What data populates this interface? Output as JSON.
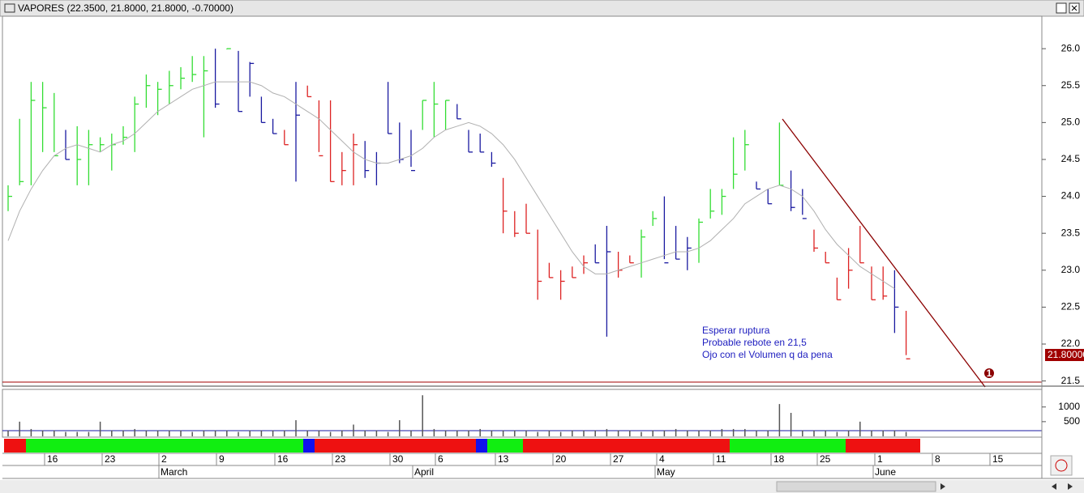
{
  "chart_data": {
    "type": "ohlc",
    "title": "VAPORES (22.3500, 21.8000, 21.8000, -0.70000)",
    "annotations": [
      "Esperar ruptura",
      "Probable rebote en 21,5",
      "Ojo con el Volumen q da pena"
    ],
    "last_price_label": "21.80000",
    "marker_label": "1",
    "x_labels": [
      "16",
      "23",
      "2",
      "9",
      "16",
      "23",
      "30",
      "6",
      "13",
      "20",
      "27",
      "4",
      "11",
      "18",
      "25",
      "1",
      "8",
      "15"
    ],
    "month_labels": [
      "March",
      "April",
      "May",
      "June"
    ],
    "high": [
      24.15,
      25.05,
      25.55,
      25.55,
      25.4,
      24.9,
      24.95,
      24.9,
      24.8,
      24.85,
      24.95,
      25.35,
      25.65,
      25.55,
      25.7,
      25.75,
      25.9,
      25.9,
      26.0,
      26.0,
      25.97,
      25.82,
      25.35,
      25.05,
      24.9,
      25.55,
      25.5,
      25.3,
      25.3,
      24.6,
      24.85,
      24.75,
      24.6,
      25.55,
      25.0,
      24.9,
      25.3,
      25.55,
      25.3,
      25.25,
      24.9,
      24.85,
      24.6,
      24.25,
      23.8,
      23.9,
      23.55,
      23.1,
      23.0,
      23.05,
      23.2,
      23.35,
      23.6,
      23.25,
      23.2,
      23.55,
      23.8,
      24.0,
      23.6,
      23.45,
      23.7,
      24.1,
      24.1,
      24.8,
      24.9,
      24.2,
      24.1,
      25.0,
      24.35,
      24.1,
      23.55,
      23.25,
      22.9,
      23.3,
      23.6,
      23.05,
      23.05,
      23.0,
      22.45
    ],
    "low": [
      23.8,
      24.15,
      24.15,
      24.6,
      24.6,
      24.5,
      24.15,
      24.15,
      24.6,
      24.35,
      24.7,
      24.6,
      25.2,
      25.1,
      25.25,
      25.45,
      25.55,
      24.8,
      25.2,
      25.99,
      25.15,
      25.35,
      25.0,
      24.85,
      24.7,
      24.2,
      25.35,
      24.6,
      24.2,
      24.15,
      24.15,
      24.25,
      24.15,
      24.85,
      24.45,
      24.4,
      24.9,
      24.8,
      24.9,
      25.05,
      24.6,
      24.6,
      24.4,
      23.5,
      23.45,
      23.5,
      22.6,
      22.9,
      22.6,
      22.9,
      22.95,
      23.1,
      22.1,
      22.9,
      23.1,
      22.9,
      23.6,
      23.15,
      23.15,
      23.0,
      23.1,
      23.7,
      23.75,
      24.1,
      24.35,
      24.1,
      23.9,
      24.15,
      23.8,
      23.75,
      23.25,
      23.1,
      22.6,
      22.75,
      23.1,
      22.6,
      22.6,
      22.15,
      21.85
    ],
    "close": [
      24.0,
      24.2,
      25.3,
      25.2,
      24.55,
      24.5,
      24.5,
      24.7,
      24.7,
      24.7,
      24.8,
      25.25,
      25.5,
      25.45,
      25.5,
      25.6,
      25.65,
      25.7,
      25.25,
      26.0,
      25.15,
      25.8,
      25.0,
      24.85,
      24.7,
      25.1,
      25.35,
      24.55,
      24.2,
      24.35,
      24.7,
      24.35,
      24.45,
      24.85,
      24.5,
      24.35,
      25.3,
      25.25,
      25.3,
      25.05,
      24.6,
      24.6,
      24.45,
      23.8,
      23.5,
      23.5,
      22.85,
      22.9,
      22.85,
      22.9,
      23.1,
      23.1,
      23.25,
      23.0,
      23.1,
      23.45,
      23.7,
      23.1,
      23.15,
      23.3,
      23.65,
      23.8,
      24.0,
      24.3,
      24.7,
      24.1,
      23.9,
      24.15,
      23.85,
      23.7,
      23.3,
      23.1,
      22.6,
      23.0,
      23.1,
      22.6,
      22.65,
      22.5,
      21.8
    ],
    "colors": [
      "#33dd33",
      "#33dd33",
      "#33dd33",
      "#33dd33",
      "#33dd33",
      "#1a1aa0",
      "#33dd33",
      "#33dd33",
      "#33dd33",
      "#33dd33",
      "#33dd33",
      "#33dd33",
      "#33dd33",
      "#33dd33",
      "#33dd33",
      "#33dd33",
      "#33dd33",
      "#33dd33",
      "#1a1aa0",
      "#33dd33",
      "#1a1aa0",
      "#1a1aa0",
      "#1a1aa0",
      "#1a1aa0",
      "#dd2222",
      "#1a1aa0",
      "#dd2222",
      "#dd2222",
      "#dd2222",
      "#dd2222",
      "#dd2222",
      "#1a1aa0",
      "#1a1aa0",
      "#1a1aa0",
      "#1a1aa0",
      "#1a1aa0",
      "#33dd33",
      "#33dd33",
      "#33dd33",
      "#1a1aa0",
      "#1a1aa0",
      "#1a1aa0",
      "#1a1aa0",
      "#dd2222",
      "#dd2222",
      "#dd2222",
      "#dd2222",
      "#dd2222",
      "#dd2222",
      "#dd2222",
      "#dd2222",
      "#1a1aa0",
      "#1a1aa0",
      "#dd2222",
      "#dd2222",
      "#33dd33",
      "#33dd33",
      "#1a1aa0",
      "#1a1aa0",
      "#1a1aa0",
      "#33dd33",
      "#33dd33",
      "#33dd33",
      "#33dd33",
      "#33dd33",
      "#1a1aa0",
      "#1a1aa0",
      "#33dd33",
      "#1a1aa0",
      "#1a1aa0",
      "#dd2222",
      "#dd2222",
      "#dd2222",
      "#dd2222",
      "#dd2222",
      "#dd2222",
      "#dd2222",
      "#1a1aa0",
      "#dd2222"
    ],
    "ma": [
      23.4,
      23.8,
      24.1,
      24.35,
      24.55,
      24.65,
      24.7,
      24.65,
      24.6,
      24.7,
      24.75,
      24.85,
      25.0,
      25.15,
      25.25,
      25.35,
      25.45,
      25.5,
      25.55,
      25.55,
      25.55,
      25.55,
      25.5,
      25.4,
      25.35,
      25.25,
      25.15,
      25.05,
      24.9,
      24.75,
      24.6,
      24.5,
      24.45,
      24.45,
      24.5,
      24.55,
      24.65,
      24.8,
      24.9,
      24.95,
      25.0,
      24.95,
      24.85,
      24.7,
      24.5,
      24.25,
      24.0,
      23.75,
      23.5,
      23.25,
      23.05,
      22.95,
      22.95,
      23.0,
      23.05,
      23.1,
      23.15,
      23.2,
      23.25,
      23.25,
      23.3,
      23.4,
      23.55,
      23.7,
      23.9,
      24.0,
      24.1,
      24.15,
      24.1,
      24.0,
      23.8,
      23.55,
      23.35,
      23.2,
      23.05,
      22.95,
      22.85,
      22.75,
      null
    ],
    "ma_color": "#b0b0b0",
    "volume": [
      200,
      500,
      250,
      200,
      200,
      150,
      150,
      150,
      500,
      200,
      200,
      250,
      200,
      200,
      200,
      200,
      150,
      200,
      200,
      200,
      150,
      200,
      200,
      200,
      200,
      550,
      200,
      200,
      150,
      200,
      400,
      200,
      200,
      150,
      550,
      200,
      1400,
      250,
      200,
      200,
      200,
      250,
      200,
      200,
      200,
      200,
      150,
      200,
      150,
      200,
      200,
      200,
      250,
      200,
      200,
      150,
      200,
      200,
      250,
      200,
      200,
      200,
      250,
      250,
      250,
      200,
      200,
      1100,
      800,
      200,
      200,
      200,
      150,
      200,
      500,
      200,
      200,
      200,
      150
    ],
    "volume_color": "#555555",
    "ylim": [
      21.43,
      26.44
    ],
    "yticks": [
      {
        "value": 21.5,
        "label": "21.5"
      },
      {
        "value": 22,
        "label": "22.0"
      },
      {
        "value": 22.5,
        "label": "22.5"
      },
      {
        "value": 23,
        "label": "23.0"
      },
      {
        "value": 23.5,
        "label": "23.5"
      },
      {
        "value": 24,
        "label": "24.0"
      },
      {
        "value": 24.5,
        "label": "24.5"
      },
      {
        "value": 25,
        "label": "25.0"
      },
      {
        "value": 25.5,
        "label": "25.5"
      },
      {
        "value": 26,
        "label": "26.0"
      }
    ],
    "volume_ylim": [
      0,
      1600
    ],
    "volume_yticks": [
      500,
      1000
    ]
  }
}
